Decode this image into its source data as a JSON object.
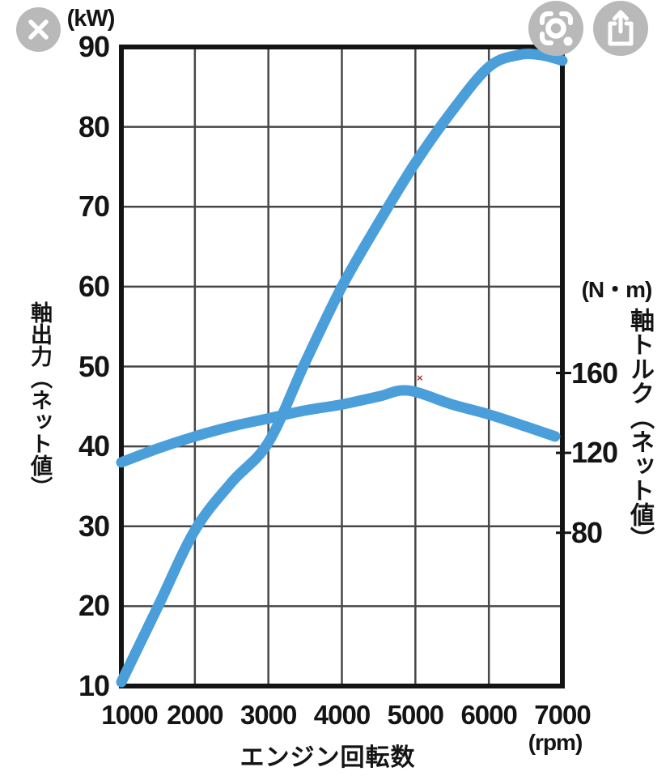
{
  "viewer": {
    "button_color": "#b9b9b9",
    "icon_color": "#ffffff",
    "buttons": {
      "close": "close",
      "lens": "google-lens-search",
      "share": "share"
    }
  },
  "chart_data": {
    "type": "line",
    "title": "",
    "x_axis": {
      "label": "エンジン回転数",
      "unit": "(rpm)",
      "range": [
        1000,
        7000
      ],
      "ticks": [
        1000,
        2000,
        3000,
        4000,
        5000,
        6000,
        7000
      ]
    },
    "y_axis_left": {
      "unit": "(kW)",
      "label": "軸出力（ネット値）",
      "range": [
        10,
        90
      ],
      "ticks": [
        90,
        80,
        70,
        60,
        50,
        40,
        30,
        20,
        10
      ]
    },
    "y_axis_right": {
      "unit": "(N・m)",
      "label": "軸トルク（ネット値）",
      "ticks": [
        160,
        120,
        80
      ],
      "alignment": {
        "kw": 50,
        "nm": 160,
        "nm_per_kw": 4
      }
    },
    "grid": true,
    "legend": "none",
    "line_color": "#4a9fda",
    "grid_color": "#474747",
    "border_color": "#141414",
    "series": [
      {
        "name": "shaft-power-net",
        "axis": "left",
        "unit": "kW",
        "points": [
          [
            1000,
            10.5
          ],
          [
            1500,
            20
          ],
          [
            2000,
            29.5
          ],
          [
            2500,
            35.5
          ],
          [
            3000,
            40.5
          ],
          [
            3500,
            50.5
          ],
          [
            4000,
            60
          ],
          [
            4500,
            68
          ],
          [
            5000,
            75.5
          ],
          [
            5500,
            82
          ],
          [
            6000,
            87.5
          ],
          [
            6400,
            89
          ],
          [
            6700,
            89
          ],
          [
            7000,
            88.3
          ]
        ]
      },
      {
        "name": "shaft-torque-net",
        "axis": "right",
        "unit": "N・m",
        "points": [
          [
            1000,
            112
          ],
          [
            1500,
            119
          ],
          [
            2000,
            125
          ],
          [
            2500,
            130
          ],
          [
            3000,
            134
          ],
          [
            3500,
            138
          ],
          [
            4000,
            141
          ],
          [
            4500,
            145
          ],
          [
            4900,
            148
          ],
          [
            5500,
            141
          ],
          [
            6000,
            136
          ],
          [
            6500,
            130
          ],
          [
            6900,
            125
          ]
        ]
      }
    ]
  },
  "artifact": {
    "glyph": "×",
    "color": "#a83232"
  }
}
